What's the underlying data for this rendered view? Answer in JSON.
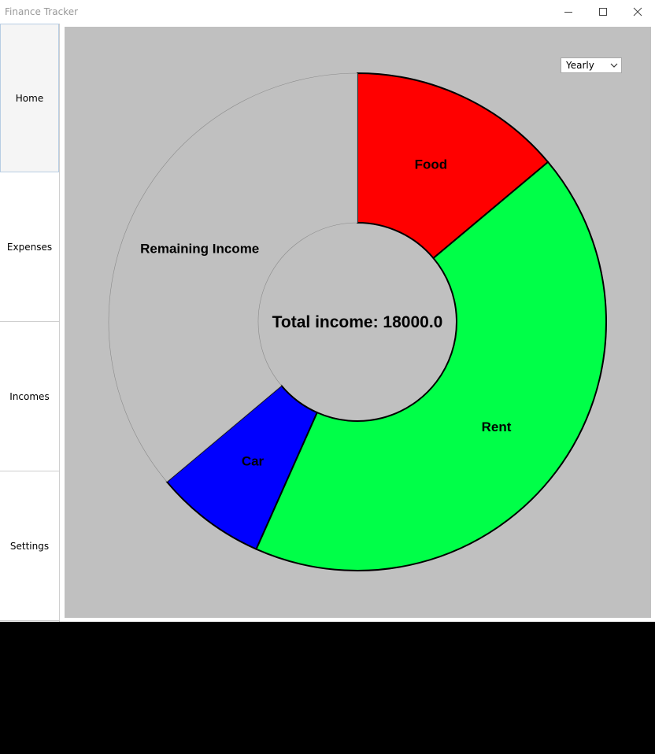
{
  "window": {
    "title": "Finance Tracker"
  },
  "sidebar": {
    "items": [
      {
        "label": "Home",
        "active": true
      },
      {
        "label": "Expenses"
      },
      {
        "label": "Incomes"
      },
      {
        "label": "Settings"
      }
    ]
  },
  "period_select": {
    "value": "Yearly"
  },
  "chart_data": {
    "type": "pie",
    "center_label": "Total income: 18000.0",
    "total": 18000,
    "slices": [
      {
        "label": "Food",
        "value": 2500,
        "color": "#ff0000"
      },
      {
        "label": "Rent",
        "value": 7700,
        "color": "#00ff48"
      },
      {
        "label": "Car",
        "value": 1300,
        "color": "#0000ff"
      },
      {
        "label": "Remaining Income",
        "value": 6500,
        "color": "#c0c0c0"
      }
    ]
  }
}
